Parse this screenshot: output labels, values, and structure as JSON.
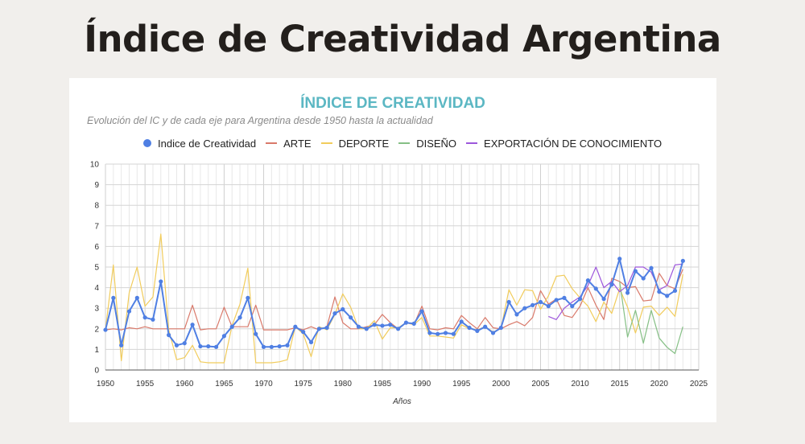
{
  "page": {
    "title": "Índice de Creatividad Argentina"
  },
  "chart_data": {
    "type": "line",
    "title": "ÍNDICE DE CREATIVIDAD",
    "subtitle": "Evolución del IC y de cada eje para Argentina desde 1950  hasta la actualidad",
    "xlabel": "Años",
    "ylabel": "",
    "xlim": [
      1950,
      2025
    ],
    "ylim": [
      0,
      10
    ],
    "x_ticks": [
      1950,
      1955,
      1960,
      1965,
      1970,
      1975,
      1980,
      1985,
      1990,
      1995,
      2000,
      2005,
      2010,
      2015,
      2020,
      2025
    ],
    "y_ticks": [
      0,
      1,
      2,
      3,
      4,
      5,
      6,
      7,
      8,
      9,
      10
    ],
    "grid": true,
    "legend_position": "top",
    "series": [
      {
        "name": "Indice de Creatividad",
        "color": "#4f7fe3",
        "markers": true,
        "x_start": 1950,
        "values": [
          1.95,
          3.5,
          1.2,
          2.85,
          3.5,
          2.55,
          2.45,
          4.3,
          1.7,
          1.2,
          1.3,
          2.2,
          1.15,
          1.15,
          1.12,
          1.65,
          2.1,
          2.55,
          3.5,
          1.75,
          1.12,
          1.12,
          1.15,
          1.2,
          2.1,
          1.85,
          1.35,
          2.0,
          2.05,
          2.75,
          2.95,
          2.55,
          2.1,
          2.0,
          2.2,
          2.15,
          2.2,
          2.0,
          2.3,
          2.25,
          2.85,
          1.8,
          1.75,
          1.8,
          1.75,
          2.35,
          2.05,
          1.9,
          2.1,
          1.8,
          2.05,
          3.3,
          2.7,
          3.0,
          3.15,
          3.3,
          3.1,
          3.4,
          3.5,
          3.1,
          3.45,
          4.35,
          3.95,
          3.45,
          4.15,
          5.4,
          3.75,
          4.8,
          4.45,
          4.95,
          3.8,
          3.6,
          3.85,
          5.3
        ]
      },
      {
        "name": "ARTE",
        "color": "#d9796a",
        "markers": false,
        "x_start": 1950,
        "values": [
          1.95,
          2.0,
          1.95,
          2.05,
          2.0,
          2.1,
          2.0,
          2.0,
          2.0,
          2.0,
          2.0,
          3.15,
          1.95,
          2.0,
          2.0,
          3.05,
          2.1,
          2.1,
          2.1,
          3.15,
          1.95,
          1.95,
          1.95,
          1.95,
          2.05,
          1.95,
          2.1,
          1.95,
          2.1,
          3.55,
          2.3,
          2.0,
          2.0,
          2.1,
          2.2,
          2.7,
          2.3,
          2.0,
          2.3,
          2.2,
          3.1,
          2.0,
          1.95,
          2.05,
          2.0,
          2.65,
          2.3,
          2.0,
          2.55,
          2.05,
          2.0,
          2.2,
          2.35,
          2.15,
          2.55,
          3.85,
          3.2,
          3.45,
          2.65,
          2.55,
          3.1,
          4.0,
          3.15,
          2.45,
          4.45,
          4.3,
          4.0,
          4.05,
          3.35,
          3.4,
          4.7,
          4.1,
          3.95,
          4.9
        ]
      },
      {
        "name": "DEPORTE",
        "color": "#f1cc5c",
        "markers": false,
        "x_start": 1950,
        "values": [
          1.95,
          5.1,
          0.45,
          3.75,
          5.0,
          3.1,
          3.55,
          6.6,
          1.95,
          0.5,
          0.6,
          1.2,
          0.4,
          0.35,
          0.35,
          0.35,
          2.15,
          3.2,
          4.95,
          0.35,
          0.35,
          0.35,
          0.4,
          0.5,
          2.1,
          1.75,
          0.65,
          2.1,
          1.95,
          2.7,
          3.7,
          3.05,
          2.0,
          2.0,
          2.4,
          1.5,
          2.05,
          2.05,
          2.3,
          2.2,
          2.55,
          1.65,
          1.65,
          1.6,
          1.55,
          2.2,
          2.0,
          1.95,
          2.1,
          1.85,
          2.0,
          3.9,
          3.15,
          3.9,
          3.85,
          2.95,
          3.6,
          4.55,
          4.6,
          3.95,
          3.5,
          3.1,
          2.35,
          3.3,
          2.75,
          3.95,
          3.05,
          1.8,
          3.05,
          3.1,
          2.65,
          3.05,
          2.6,
          4.65
        ]
      },
      {
        "name": "DISEÑO",
        "color": "#85bf85",
        "markers": false,
        "x_start": 2015,
        "values": [
          4.3,
          1.6,
          2.9,
          1.3,
          2.9,
          1.55,
          1.1,
          0.8,
          2.1
        ]
      },
      {
        "name": "EXPORTACIÓN DE CONOCIMIENTO",
        "color": "#9d57db",
        "markers": false,
        "x_start": 2006,
        "values": [
          2.6,
          2.45,
          3.0,
          3.3,
          3.55,
          4.1,
          5.0,
          4.0,
          4.3,
          3.8,
          4.1,
          5.0,
          5.0,
          4.75,
          3.9,
          4.1,
          5.1,
          5.15
        ]
      }
    ]
  }
}
